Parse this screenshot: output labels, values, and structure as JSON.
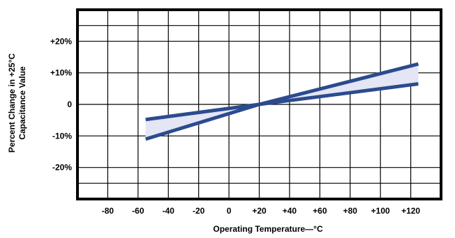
{
  "colors": {
    "curve": "#2B4B8E",
    "band": "#E4E5F5",
    "frame": "#000000",
    "grid": "#000000",
    "text": "#000000"
  },
  "chart_data": {
    "type": "line",
    "title": "",
    "xlabel": "Operating Temperature—°C",
    "ylabel": "Percent Change in +25°C",
    "ylabel2": "Capacitance Value",
    "xlim": [
      -100,
      140
    ],
    "ylim": [
      -30,
      30
    ],
    "xticks": [
      -80,
      -60,
      -40,
      -20,
      0,
      20,
      40,
      60,
      80,
      100,
      120
    ],
    "xtick_labels": [
      "-80",
      "-60",
      "-40",
      "-20",
      "0",
      "+20",
      "+40",
      "+60",
      "+80",
      "+100",
      "+120"
    ],
    "yticks": [
      20,
      10,
      0,
      -10,
      -20
    ],
    "ytick_labels": [
      "+20%",
      "+10%",
      "0",
      "-10%",
      "-20%"
    ],
    "grid": true,
    "shaded_band": true,
    "series": [
      {
        "x": [
          -55,
          20,
          125
        ],
        "y": [
          -11,
          0,
          12.8
        ]
      },
      {
        "x": [
          -55,
          20,
          125
        ],
        "y": [
          -4.8,
          0,
          6.5
        ]
      }
    ]
  }
}
